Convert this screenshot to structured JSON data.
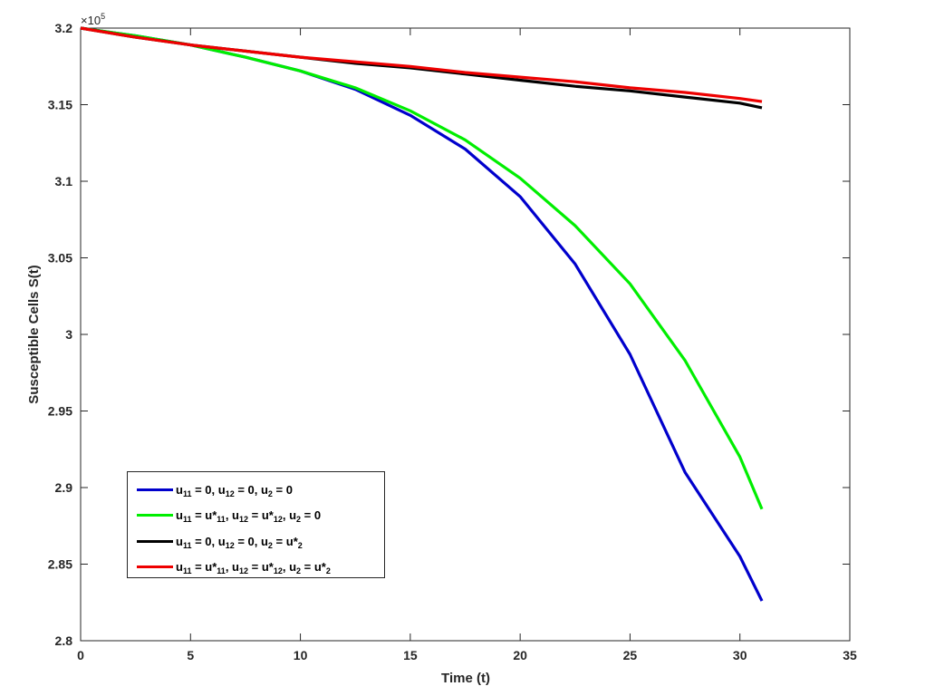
{
  "chart_data": {
    "type": "line",
    "title": "",
    "xlabel": "Time (t)",
    "ylabel": "Susceptible Cells S(t)",
    "y_exponent_label": "×10",
    "y_exponent_power": "5",
    "xlim": [
      0,
      35
    ],
    "ylim": [
      2.8,
      3.2
    ],
    "y_scale_factor": 100000,
    "x_ticks": [
      0,
      5,
      10,
      15,
      20,
      25,
      30,
      35
    ],
    "x_tick_labels": [
      "0",
      "5",
      "10",
      "15",
      "20",
      "25",
      "30",
      "35"
    ],
    "y_ticks": [
      2.8,
      2.85,
      2.9,
      2.95,
      3.0,
      3.05,
      3.1,
      3.15,
      3.2
    ],
    "y_tick_labels": [
      "2.8",
      "2.85",
      "2.9",
      "2.95",
      "3",
      "3.05",
      "3.1",
      "3.15",
      "3.2"
    ],
    "grid": false,
    "legend_position": "lower-left",
    "x": [
      0,
      2.5,
      5,
      7.5,
      10,
      12.5,
      15,
      17.5,
      20,
      22.5,
      25,
      27.5,
      30,
      31
    ],
    "series": [
      {
        "name": "u11 = 0, u12 = 0, u2 = 0",
        "color": "#0000cc",
        "values": [
          3.2,
          3.195,
          3.189,
          3.181,
          3.172,
          3.16,
          3.143,
          3.121,
          3.09,
          3.046,
          2.987,
          2.91,
          2.855,
          2.826
        ]
      },
      {
        "name": "u11 = u*11, u12 = u*12, u2 = 0",
        "color": "#00ee00",
        "values": [
          3.2,
          3.195,
          3.189,
          3.181,
          3.172,
          3.161,
          3.146,
          3.127,
          3.102,
          3.071,
          3.033,
          2.983,
          2.92,
          2.886
        ]
      },
      {
        "name": "u11 = 0, u12 = 0, u2 = u*2",
        "color": "#000000",
        "values": [
          3.2,
          3.194,
          3.189,
          3.185,
          3.181,
          3.177,
          3.174,
          3.17,
          3.166,
          3.162,
          3.159,
          3.155,
          3.151,
          3.148
        ]
      },
      {
        "name": "u11 = u*11, u12 = u*12, u2 =  u*2",
        "color": "#ee0000",
        "values": [
          3.2,
          3.194,
          3.189,
          3.185,
          3.181,
          3.178,
          3.175,
          3.171,
          3.168,
          3.165,
          3.161,
          3.158,
          3.154,
          3.152
        ]
      }
    ]
  },
  "legend": {
    "entries": [
      {
        "label_parts": [
          [
            "u"
          ],
          [
            "11",
            "sub"
          ],
          [
            " = 0, u"
          ],
          [
            "12",
            "sub"
          ],
          [
            " = 0, u"
          ],
          [
            "2",
            "sub"
          ],
          [
            " = 0"
          ]
        ]
      },
      {
        "label_parts": [
          [
            "u"
          ],
          [
            "11",
            "sub"
          ],
          [
            " = u*"
          ],
          [
            "11",
            "sub"
          ],
          [
            ", u"
          ],
          [
            "12",
            "sub"
          ],
          [
            " = u*"
          ],
          [
            "12",
            "sub"
          ],
          [
            ", u"
          ],
          [
            "2",
            "sub"
          ],
          [
            " = 0"
          ]
        ]
      },
      {
        "label_parts": [
          [
            "u"
          ],
          [
            "11",
            "sub"
          ],
          [
            " = 0, u"
          ],
          [
            "12",
            "sub"
          ],
          [
            " = 0, u"
          ],
          [
            "2",
            "sub"
          ],
          [
            " = u*"
          ],
          [
            "2",
            "sub"
          ]
        ]
      },
      {
        "label_parts": [
          [
            "u"
          ],
          [
            "11",
            "sub"
          ],
          [
            " = u*"
          ],
          [
            "11",
            "sub"
          ],
          [
            ", u"
          ],
          [
            "12",
            "sub"
          ],
          [
            " = u*"
          ],
          [
            "12",
            "sub"
          ],
          [
            ", u"
          ],
          [
            "2",
            "sub"
          ],
          [
            " =  u*"
          ],
          [
            "2",
            "sub"
          ]
        ]
      }
    ]
  }
}
